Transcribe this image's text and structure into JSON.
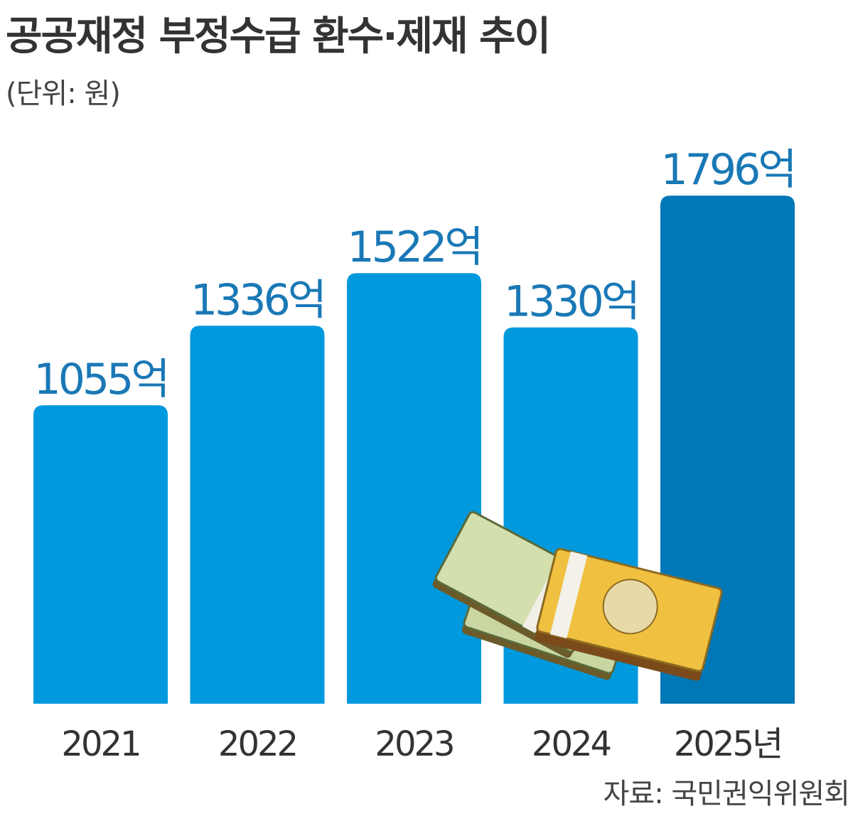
{
  "chart_data": {
    "type": "bar",
    "title": "공공재정 부정수급 환수·제재 추이",
    "subtitle": "(단위: 원)",
    "source": "자료: 국민권익위원회",
    "categories": [
      "2021",
      "2022",
      "2023",
      "2024",
      "2025년"
    ],
    "values": [
      1055,
      1336,
      1522,
      1330,
      1796
    ],
    "value_labels": [
      "1055억",
      "1336억",
      "1522억",
      "1330억",
      "1796억"
    ],
    "colors": [
      "#0099dd",
      "#0099dd",
      "#0099dd",
      "#0099dd",
      "#0077b6"
    ]
  }
}
